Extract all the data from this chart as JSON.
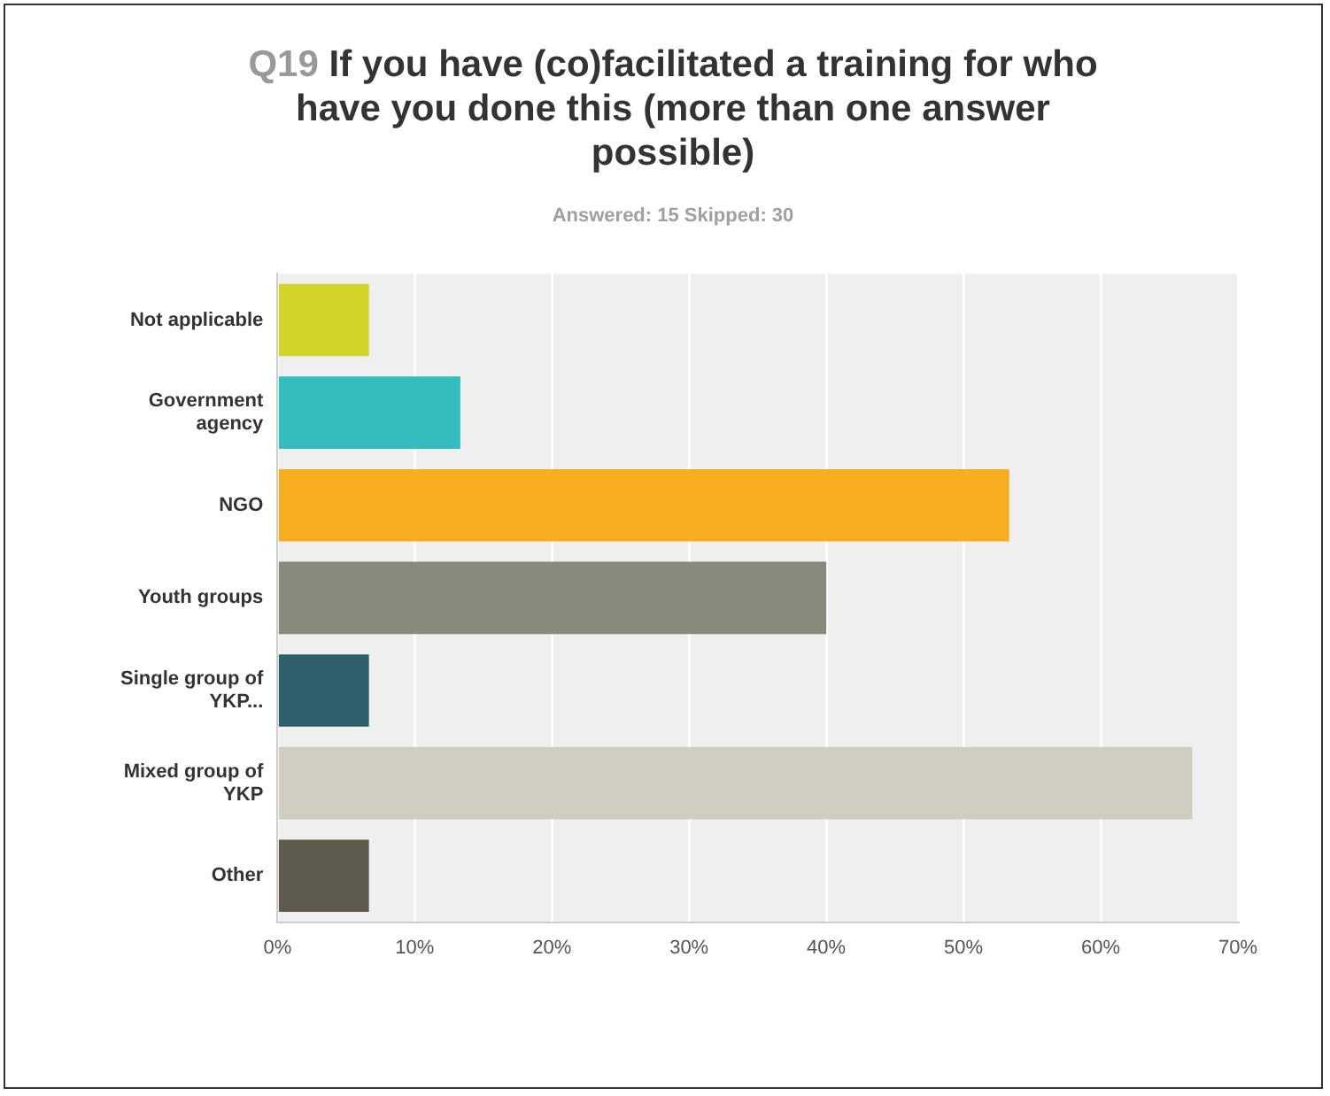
{
  "chart_data": {
    "type": "bar",
    "orientation": "horizontal",
    "title": "Q19 If you have (co)facilitated a training for who have you done this (more than one answer possible)",
    "subtitle": "Answered: 15    Skipped: 30",
    "categories": [
      "Not applicable",
      "Government agency",
      "NGO",
      "Youth groups",
      "Single group of YKP...",
      "Mixed group of YKP",
      "Other"
    ],
    "values": [
      6.67,
      13.33,
      53.33,
      40,
      6.67,
      66.67,
      6.67
    ],
    "colors": [
      "#d0d426",
      "#33bdbf",
      "#f5ae1f",
      "#8a8a7a",
      "#2f5f6b",
      "#cfcdc0",
      "#5e5b4c"
    ],
    "xlim": [
      0,
      70
    ],
    "xticks": [
      {
        "value": 0,
        "label": "0%"
      },
      {
        "value": 10,
        "label": "10%"
      },
      {
        "value": 20,
        "label": "20%"
      },
      {
        "value": 30,
        "label": "30%"
      },
      {
        "value": 40,
        "label": "40%"
      },
      {
        "value": 50,
        "label": "50%"
      },
      {
        "value": 60,
        "label": "60%"
      },
      {
        "value": 70,
        "label": "70%"
      }
    ],
    "grid": "x",
    "legend": false
  }
}
